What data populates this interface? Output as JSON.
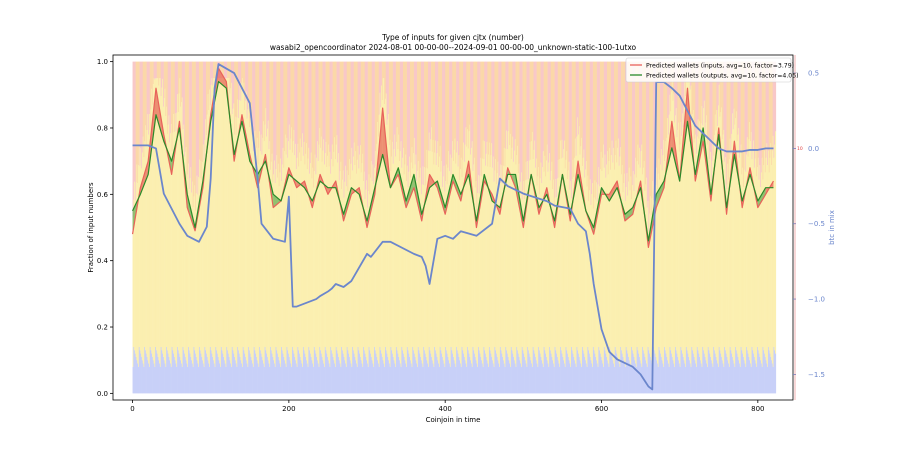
{
  "chart_data": {
    "type": "line",
    "title": "Type of inputs for given cjtx (number)",
    "subtitle": "wasabi2_opencoordinator 2024-08-01 00-00-00--2024-09-01 00-00-00_unknown-static-100-1utxo",
    "xlabel": "Coinjoin in time",
    "ylabel": "Fraction of input numbers",
    "y2label": "btc in mix",
    "xlim": [
      -25,
      845
    ],
    "ylim": [
      -0.02,
      1.02
    ],
    "y2lim": [
      -1.67,
      0.62
    ],
    "xticks": [
      "0",
      "200",
      "400",
      "600",
      "800"
    ],
    "yticks": [
      "0.0",
      "0.2",
      "0.4",
      "0.6",
      "0.8",
      "1.0"
    ],
    "y2ticks": [
      "−1.5",
      "−1.0",
      "−0.5",
      "0.0",
      "0.5"
    ],
    "right_axis_marker": "10",
    "legend_position": "top-right",
    "grid": false,
    "colors": {
      "inputs": "#e8625a",
      "outputs": "#2a8a2a",
      "btc": "#6b86cc",
      "stack_bottom": "#c8d0f8",
      "stack_mid": "#fbefb0",
      "stack_top": "#fbd8a8",
      "stack_peak": "#f8c8c8"
    },
    "series": [
      {
        "name": "Predicted wallets (inputs, avg=10, factor=3.79)",
        "x": [
          0,
          10,
          20,
          30,
          40,
          50,
          60,
          70,
          80,
          90,
          100,
          110,
          120,
          130,
          140,
          150,
          160,
          170,
          180,
          190,
          200,
          210,
          220,
          230,
          240,
          250,
          260,
          270,
          280,
          290,
          300,
          310,
          320,
          330,
          340,
          350,
          360,
          370,
          380,
          390,
          400,
          410,
          420,
          430,
          440,
          450,
          460,
          470,
          480,
          490,
          500,
          510,
          520,
          530,
          540,
          550,
          560,
          570,
          580,
          590,
          600,
          610,
          620,
          630,
          640,
          650,
          660,
          670,
          680,
          690,
          700,
          710,
          720,
          730,
          740,
          750,
          760,
          770,
          780,
          790,
          800,
          810,
          820
        ],
        "values": [
          0.48,
          0.62,
          0.7,
          0.92,
          0.78,
          0.66,
          0.82,
          0.56,
          0.49,
          0.62,
          0.84,
          0.98,
          0.94,
          0.7,
          0.84,
          0.72,
          0.62,
          0.72,
          0.56,
          0.58,
          0.68,
          0.62,
          0.64,
          0.56,
          0.66,
          0.6,
          0.64,
          0.52,
          0.6,
          0.62,
          0.5,
          0.6,
          0.86,
          0.62,
          0.66,
          0.56,
          0.62,
          0.52,
          0.66,
          0.62,
          0.54,
          0.64,
          0.58,
          0.7,
          0.5,
          0.64,
          0.6,
          0.54,
          0.68,
          0.62,
          0.5,
          0.66,
          0.54,
          0.62,
          0.5,
          0.66,
          0.52,
          0.7,
          0.55,
          0.48,
          0.6,
          0.6,
          0.64,
          0.52,
          0.54,
          0.64,
          0.44,
          0.56,
          0.62,
          0.82,
          0.64,
          0.92,
          0.64,
          0.76,
          0.58,
          0.8,
          0.54,
          0.76,
          0.56,
          0.68,
          0.56,
          0.6,
          0.64
        ]
      },
      {
        "name": "Predicted wallets (outputs, avg=10, factor=4.05)",
        "x": [
          0,
          10,
          20,
          30,
          40,
          50,
          60,
          70,
          80,
          90,
          100,
          110,
          120,
          130,
          140,
          150,
          160,
          170,
          180,
          190,
          200,
          210,
          220,
          230,
          240,
          250,
          260,
          270,
          280,
          290,
          300,
          310,
          320,
          330,
          340,
          350,
          360,
          370,
          380,
          390,
          400,
          410,
          420,
          430,
          440,
          450,
          460,
          470,
          480,
          490,
          500,
          510,
          520,
          530,
          540,
          550,
          560,
          570,
          580,
          590,
          600,
          610,
          620,
          630,
          640,
          650,
          660,
          670,
          680,
          690,
          700,
          710,
          720,
          730,
          740,
          750,
          760,
          770,
          780,
          790,
          800,
          810,
          820
        ],
        "values": [
          0.55,
          0.6,
          0.66,
          0.84,
          0.76,
          0.7,
          0.8,
          0.6,
          0.5,
          0.64,
          0.82,
          0.94,
          0.92,
          0.72,
          0.82,
          0.7,
          0.66,
          0.7,
          0.6,
          0.58,
          0.66,
          0.64,
          0.62,
          0.58,
          0.64,
          0.62,
          0.62,
          0.54,
          0.62,
          0.6,
          0.52,
          0.62,
          0.72,
          0.62,
          0.68,
          0.58,
          0.66,
          0.54,
          0.62,
          0.64,
          0.56,
          0.66,
          0.6,
          0.66,
          0.52,
          0.66,
          0.58,
          0.56,
          0.66,
          0.66,
          0.52,
          0.66,
          0.56,
          0.6,
          0.52,
          0.66,
          0.54,
          0.66,
          0.55,
          0.5,
          0.62,
          0.58,
          0.62,
          0.54,
          0.56,
          0.62,
          0.46,
          0.6,
          0.64,
          0.74,
          0.64,
          0.82,
          0.66,
          0.8,
          0.6,
          0.78,
          0.56,
          0.72,
          0.58,
          0.66,
          0.58,
          0.62,
          0.62
        ]
      },
      {
        "name": "btc in mix",
        "axis": "right",
        "x": [
          0,
          20,
          30,
          40,
          60,
          70,
          85,
          95,
          100,
          105,
          110,
          130,
          150,
          160,
          165,
          180,
          195,
          200,
          205,
          210,
          235,
          240,
          250,
          255,
          260,
          270,
          280,
          300,
          305,
          320,
          330,
          360,
          370,
          375,
          380,
          390,
          400,
          410,
          420,
          440,
          460,
          470,
          480,
          500,
          530,
          540,
          560,
          570,
          580,
          585,
          590,
          600,
          610,
          620,
          640,
          650,
          660,
          665,
          670,
          680,
          690,
          700,
          710,
          720,
          730,
          740,
          750,
          760,
          770,
          780,
          790,
          800,
          810,
          820
        ],
        "values": [
          0.02,
          0.02,
          0.0,
          -0.3,
          -0.5,
          -0.58,
          -0.62,
          -0.52,
          -0.2,
          0.4,
          0.56,
          0.5,
          0.3,
          -0.2,
          -0.5,
          -0.6,
          -0.62,
          -0.32,
          -1.05,
          -1.05,
          -1.0,
          -0.98,
          -0.95,
          -0.93,
          -0.9,
          -0.92,
          -0.88,
          -0.7,
          -0.72,
          -0.62,
          -0.62,
          -0.7,
          -0.72,
          -0.78,
          -0.9,
          -0.6,
          -0.58,
          -0.6,
          -0.55,
          -0.58,
          -0.5,
          -0.2,
          -0.25,
          -0.3,
          -0.35,
          -0.38,
          -0.4,
          -0.5,
          -0.55,
          -0.7,
          -0.9,
          -1.2,
          -1.35,
          -1.4,
          -1.45,
          -1.5,
          -1.58,
          -1.6,
          0.44,
          0.44,
          0.4,
          0.35,
          0.25,
          0.15,
          0.1,
          0.05,
          0.0,
          -0.02,
          -0.02,
          -0.02,
          -0.01,
          -0.01,
          0.0,
          0.0
        ]
      }
    ]
  }
}
